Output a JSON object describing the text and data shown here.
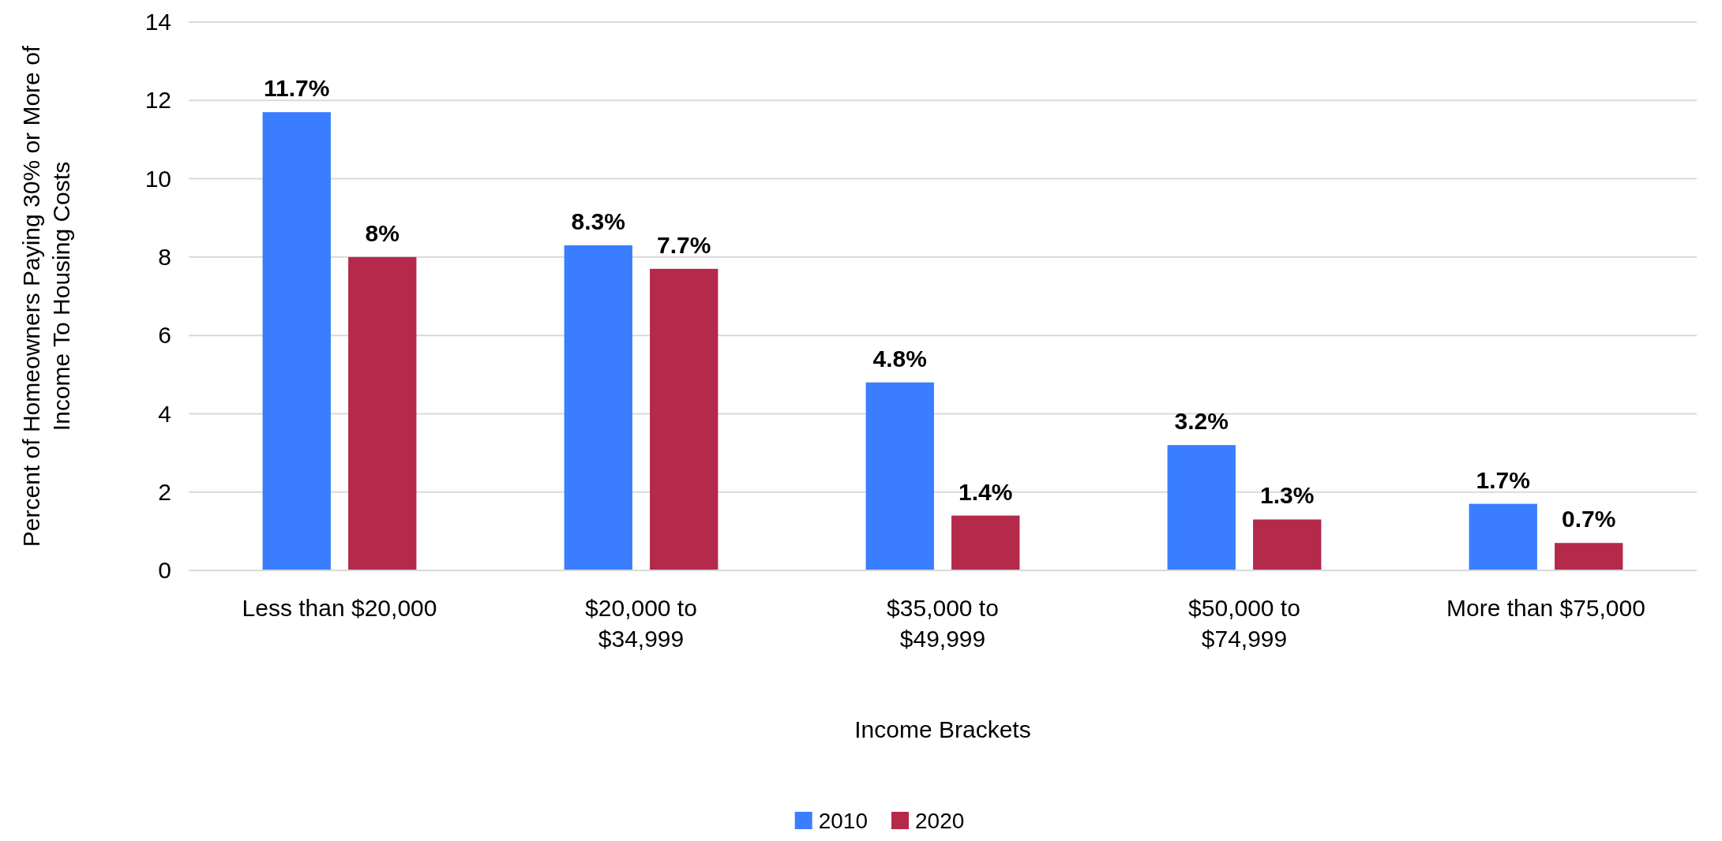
{
  "chart_data": {
    "type": "bar",
    "xlabel": "Income Brackets",
    "ylabel": "Percent of Homeowners Paying 30% or More of Income To Housing Costs",
    "categories": [
      "Less than $20,000",
      "$20,000 to $34,999",
      "$35,000 to $49,999",
      "$50,000 to $74,999",
      "More than $75,000"
    ],
    "series": [
      {
        "name": "2010",
        "color": "#3a7dff",
        "values": [
          11.7,
          8.3,
          4.8,
          3.2,
          1.7
        ],
        "value_labels": [
          "11.7%",
          "8.3%",
          "4.8%",
          "3.2%",
          "1.7%"
        ]
      },
      {
        "name": "2020",
        "color": "#b5294a",
        "values": [
          8,
          7.7,
          1.4,
          1.3,
          0.7
        ],
        "value_labels": [
          "8%",
          "7.7%",
          "1.4%",
          "1.3%",
          "0.7%"
        ]
      }
    ],
    "ylim": [
      0,
      14
    ],
    "yticks": [
      0,
      2,
      4,
      6,
      8,
      10,
      12,
      14
    ],
    "grid": "y",
    "legend": "bottom"
  }
}
